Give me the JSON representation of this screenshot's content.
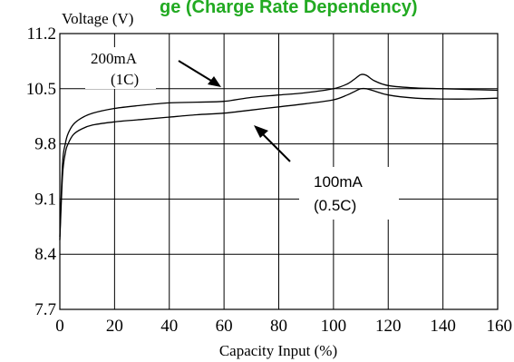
{
  "title_fragment": "ge (Charge Rate Dependency)",
  "title_color": "#22aa22",
  "chart_data": {
    "type": "line",
    "title": "",
    "xlabel": "Capacity Input (%)",
    "ylabel": "Voltage (V)",
    "xlim": [
      0,
      160
    ],
    "ylim": [
      7.7,
      11.2
    ],
    "xticks": [
      0,
      20,
      40,
      60,
      80,
      100,
      120,
      140,
      160
    ],
    "yticks": [
      7.7,
      8.4,
      9.1,
      9.8,
      10.5,
      11.2
    ],
    "xtick_labels": [
      "0",
      "20",
      "40",
      "60",
      "80",
      "100",
      "120",
      "140",
      "160"
    ],
    "ytick_labels": [
      "7.7",
      "8.4",
      "9.1",
      "9.8",
      "10.5",
      "11.2"
    ],
    "grid": true,
    "series": [
      {
        "name": "200mA (1C)",
        "label_lines": [
          "200mA",
          "(1C)"
        ],
        "color": "#000000",
        "x": [
          0,
          1,
          2,
          3,
          5,
          8,
          12,
          20,
          30,
          40,
          50,
          60,
          70,
          80,
          90,
          100,
          105,
          108,
          110,
          112,
          115,
          120,
          130,
          140,
          150,
          160
        ],
        "y": [
          8.62,
          9.55,
          9.8,
          9.93,
          10.05,
          10.13,
          10.19,
          10.25,
          10.29,
          10.32,
          10.33,
          10.34,
          10.39,
          10.42,
          10.45,
          10.5,
          10.56,
          10.63,
          10.68,
          10.67,
          10.6,
          10.54,
          10.51,
          10.5,
          10.49,
          10.48
        ]
      },
      {
        "name": "100mA (0.5C)",
        "label_lines": [
          "100mA",
          "(0.5C)"
        ],
        "color": "#000000",
        "x": [
          0,
          1,
          2,
          3,
          5,
          8,
          12,
          20,
          30,
          40,
          50,
          60,
          70,
          80,
          90,
          100,
          105,
          108,
          110,
          112,
          115,
          120,
          130,
          140,
          150,
          160
        ],
        "y": [
          8.58,
          9.4,
          9.68,
          9.8,
          9.92,
          9.99,
          10.04,
          10.08,
          10.11,
          10.14,
          10.17,
          10.19,
          10.23,
          10.27,
          10.31,
          10.36,
          10.42,
          10.47,
          10.5,
          10.5,
          10.47,
          10.42,
          10.38,
          10.37,
          10.37,
          10.38
        ]
      }
    ]
  }
}
